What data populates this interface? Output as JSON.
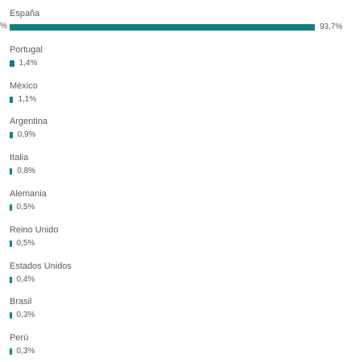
{
  "chart_data": {
    "type": "bar",
    "orientation": "horizontal",
    "title": "",
    "xlabel": "",
    "ylabel": "",
    "xlim": [
      0,
      93.7
    ],
    "bar_color": "#11807b",
    "categories": [
      "España",
      "Portugal",
      "México",
      "Argentina",
      "Italia",
      "Alemania",
      "Reino Unido",
      "Estados Unidos",
      "Brasil",
      "Perú"
    ],
    "values": [
      93.7,
      1.4,
      1.1,
      0.9,
      0.8,
      0.5,
      0.5,
      0.4,
      0.3,
      0.3
    ],
    "value_labels": [
      "93,7%",
      "1,4%",
      "1,1%",
      "0,9%",
      "0,8%",
      "0,5%",
      "0,5%",
      "0,4%",
      "0,3%",
      "0,3%"
    ],
    "clipped_left_text": "%",
    "grid": false,
    "legend": "none"
  }
}
